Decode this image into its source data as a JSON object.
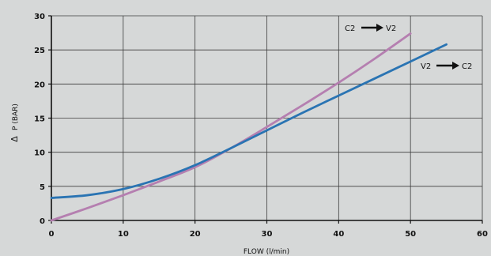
{
  "chart_data": {
    "type": "line",
    "title": "",
    "xlabel": "FLOW  (l/min)",
    "ylabel": "P (BAR)",
    "ylabel_symbol": "Δ",
    "xlim": [
      0,
      60
    ],
    "ylim": [
      0,
      30
    ],
    "xticks": [
      "0",
      "10",
      "20",
      "30",
      "40",
      "50",
      "60"
    ],
    "yticks": [
      "0",
      "5",
      "10",
      "15",
      "20",
      "25",
      "30"
    ],
    "grid": true,
    "series": [
      {
        "name": "C2 → V2",
        "color": "#b57fb0",
        "x": [
          0,
          5,
          10,
          15,
          20,
          25,
          30,
          35,
          40,
          45,
          50
        ],
        "y": [
          0,
          1.8,
          3.7,
          5.7,
          7.8,
          10.6,
          13.7,
          16.9,
          20.2,
          23.7,
          27.4
        ]
      },
      {
        "name": "V2 → C2",
        "color": "#2a74b3",
        "x": [
          0,
          5,
          10,
          15,
          20,
          25,
          30,
          35,
          40,
          45,
          50,
          55
        ],
        "y": [
          3.3,
          3.7,
          4.6,
          6.1,
          8.1,
          10.6,
          13.2,
          15.8,
          18.3,
          20.8,
          23.3,
          25.8
        ]
      }
    ],
    "annotations": [
      {
        "label": "C2",
        "arrow": true,
        "target": "V2"
      },
      {
        "label": "V2",
        "arrow": true,
        "target": "C2"
      }
    ]
  }
}
